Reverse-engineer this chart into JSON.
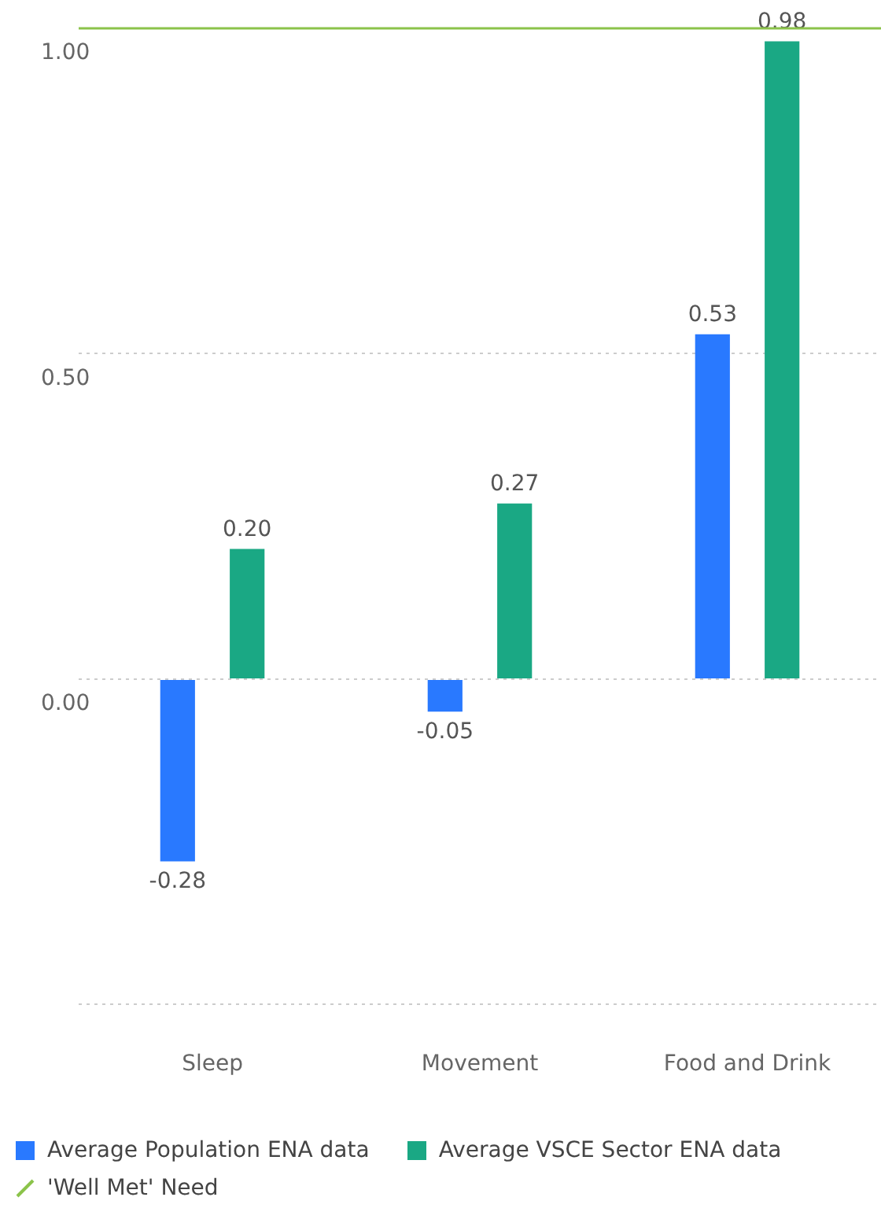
{
  "chart_data": {
    "type": "bar",
    "categories": [
      "Sleep",
      "Movement",
      "Food and Drink"
    ],
    "series": [
      {
        "name": "Average Population ENA data",
        "color": "#2979ff",
        "values": [
          -0.28,
          -0.05,
          0.53
        ],
        "value_labels": [
          "-0.28",
          "-0.05",
          "0.53"
        ]
      },
      {
        "name": "Average VSCE Sector ENA data",
        "color": "#1aa884",
        "values": [
          0.2,
          0.27,
          0.98
        ],
        "value_labels": [
          "0.20",
          "0.27",
          "0.98"
        ]
      }
    ],
    "ylim": [
      -0.5,
      1.0
    ],
    "yticks": [
      {
        "value": -0.5,
        "label": null
      },
      {
        "value": 0,
        "label": "0.00"
      },
      {
        "value": 0.5,
        "label": "0.50"
      },
      {
        "value": 1,
        "label": "1.00"
      }
    ],
    "ref_lines": [
      {
        "axis": "y",
        "value": 1,
        "label": "'Well Met' Need",
        "color": "#8bc34a"
      }
    ],
    "grid": "y",
    "legend": "bottom"
  }
}
